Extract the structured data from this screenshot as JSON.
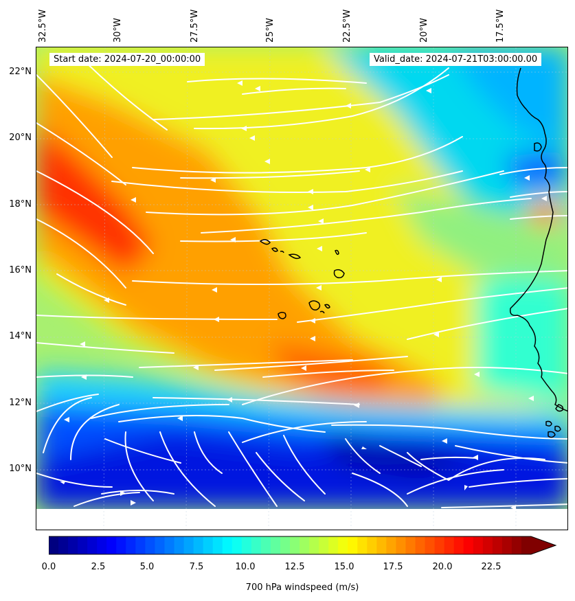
{
  "map": {
    "start_date": "Start date: 2024-07-20_00:00:00",
    "valid_date": "Valid_date: 2024-07-21T03:00:00.00",
    "longitude_labels": [
      "32.5°W",
      "30°W",
      "27.5°W",
      "25°W",
      "22.5°W",
      "20°W",
      "17.5°W"
    ],
    "latitude_labels": [
      "22°N",
      "20°N",
      "18°N",
      "16°N",
      "14°N",
      "12°N",
      "10°N"
    ],
    "field": "700 hPa windspeed (m/s)",
    "streamline_color": "#ffffff",
    "coastline_color": "#000000",
    "colormap": "jet"
  },
  "colorbar": {
    "label": "700 hPa windspeed (m/s)",
    "ticks": [
      "0.0",
      "2.5",
      "5.0",
      "7.5",
      "10.0",
      "12.5",
      "15.0",
      "17.5",
      "20.0",
      "22.5"
    ],
    "min": 0,
    "max": 25,
    "extend": "max"
  }
}
